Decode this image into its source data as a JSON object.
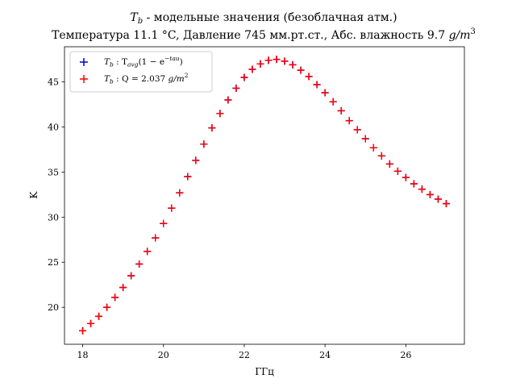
{
  "chart_data": {
    "type": "scatter",
    "title": "T_b - модельные значения (безоблачная атм.)",
    "title_parts": {
      "T": "T",
      "b": "b",
      "rest": " - модельные значения (безоблачная атм.)"
    },
    "subtitle": "Температура 11.1 °C, Давление 745 мм.рт.ст., Абс. влажность 9.7 g/m^3",
    "subtitle_parts": {
      "main": "Температура 11.1 °C, Давление 745 мм.рт.ст., Абс. влажность 9.7 ",
      "unit": "g/m",
      "exp": "3"
    },
    "xlabel": "ГГц",
    "ylabel": "K",
    "xlim": [
      17.55,
      27.45
    ],
    "ylim": [
      15.9,
      48.9
    ],
    "xticks": [
      18,
      20,
      22,
      24,
      26
    ],
    "yticks": [
      20,
      25,
      30,
      35,
      40,
      45
    ],
    "grid": false,
    "legend": "upper-left",
    "x": [
      18.0,
      18.2,
      18.4,
      18.6,
      18.8,
      19.0,
      19.2,
      19.4,
      19.6,
      19.8,
      20.0,
      20.2,
      20.4,
      20.6,
      20.8,
      21.0,
      21.2,
      21.4,
      21.6,
      21.8,
      22.0,
      22.2,
      22.4,
      22.6,
      22.8,
      23.0,
      23.2,
      23.4,
      23.6,
      23.8,
      24.0,
      24.2,
      24.4,
      24.6,
      24.8,
      25.0,
      25.2,
      25.4,
      25.6,
      25.8,
      26.0,
      26.2,
      26.4,
      26.6,
      26.8,
      27.0
    ],
    "series": [
      {
        "legend_label": {
          "prefix": "T",
          "sub": "b",
          "mid": " : T",
          "sub2": "avg",
          "tail": "(1 − e",
          "sup": "−tau",
          "end": ")"
        },
        "color": "#0000cc",
        "values": [
          17.4,
          18.2,
          19.0,
          20.0,
          21.1,
          22.2,
          23.5,
          24.8,
          26.2,
          27.7,
          29.3,
          31.0,
          32.7,
          34.5,
          36.3,
          38.1,
          39.9,
          41.5,
          43.0,
          44.3,
          45.5,
          46.4,
          47.0,
          47.4,
          47.5,
          47.3,
          46.9,
          46.3,
          45.6,
          44.7,
          43.8,
          42.8,
          41.8,
          40.7,
          39.7,
          38.7,
          37.7,
          36.8,
          35.9,
          35.1,
          34.4,
          33.7,
          33.1,
          32.5,
          32.0,
          31.5
        ]
      },
      {
        "legend_label": {
          "prefix": "T",
          "sub": "b",
          "mid": " : Q = 2.037 ",
          "unit": "g/m",
          "sup": "2"
        },
        "color": "#ff0000",
        "values": [
          17.4,
          18.2,
          19.0,
          20.0,
          21.1,
          22.2,
          23.5,
          24.8,
          26.2,
          27.7,
          29.3,
          31.0,
          32.7,
          34.5,
          36.3,
          38.1,
          39.9,
          41.5,
          43.0,
          44.3,
          45.5,
          46.4,
          47.0,
          47.4,
          47.5,
          47.3,
          46.9,
          46.3,
          45.6,
          44.7,
          43.8,
          42.8,
          41.8,
          40.7,
          39.7,
          38.7,
          37.7,
          36.8,
          35.9,
          35.1,
          34.4,
          33.7,
          33.1,
          32.5,
          32.0,
          31.5
        ]
      }
    ]
  }
}
